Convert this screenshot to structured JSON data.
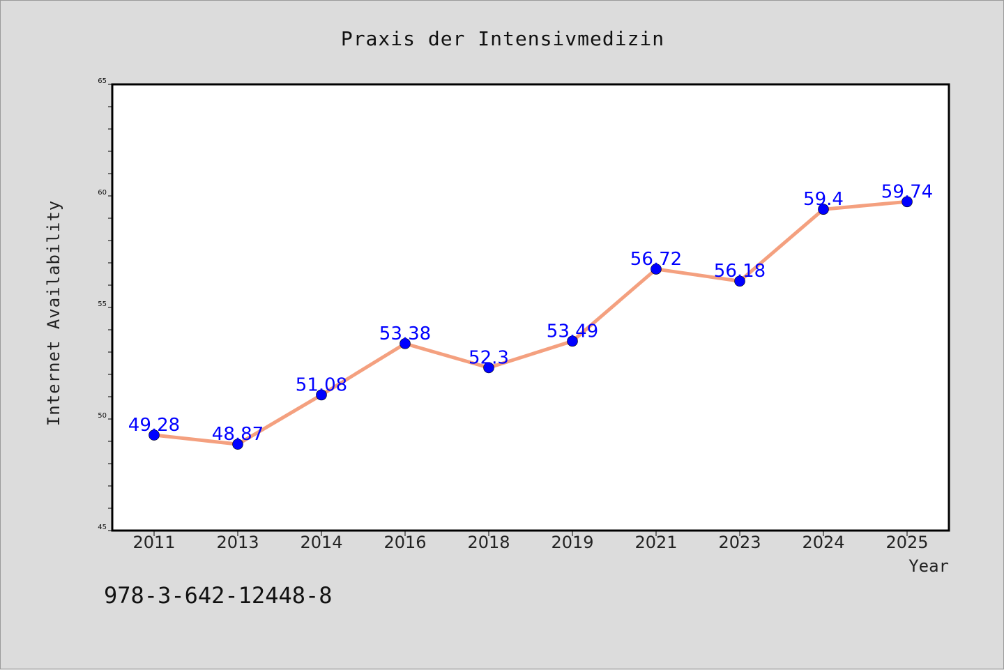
{
  "chart_data": {
    "type": "line",
    "title": "Praxis der Intensivmedizin",
    "xlabel": "Year",
    "ylabel": "Internet Availability",
    "categories": [
      "2011",
      "2013",
      "2014",
      "2016",
      "2018",
      "2019",
      "2021",
      "2023",
      "2024",
      "2025"
    ],
    "series": [
      {
        "values": [
          49.28,
          48.87,
          51.08,
          53.38,
          52.3,
          53.49,
          56.72,
          56.18,
          59.4,
          59.74
        ],
        "data_labels": [
          "49.28",
          "48.87",
          "51.08",
          "53.38",
          "52.3",
          "53.49",
          "56.72",
          "56.18",
          "59.4",
          "59.74"
        ],
        "line_color": "#f4a07f",
        "marker_color": "#0000ff"
      }
    ],
    "ylim": [
      45,
      65
    ],
    "yticks": [
      "45",
      "50",
      "55",
      "60",
      "65"
    ],
    "grid": false,
    "legend": "none"
  },
  "annotation": "978-3-642-12448-8",
  "colors": {
    "background": "#dcdcdc",
    "plot_area": "#ffffff",
    "data_label": "#0000ff"
  }
}
